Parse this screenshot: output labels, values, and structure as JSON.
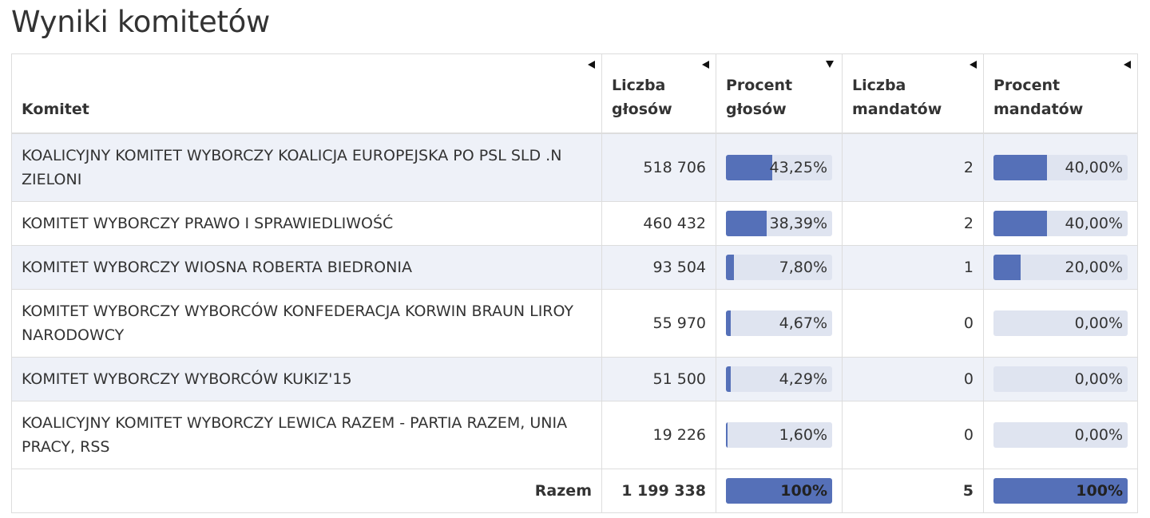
{
  "page": {
    "title": "Wyniki komitetów"
  },
  "table": {
    "headers": {
      "committee": "Komitet",
      "votes": "Liczba głosów",
      "votes_pct": "Procent głosów",
      "seats": "Liczba mandatów",
      "seats_pct": "Procent mandatów"
    },
    "rows": [
      {
        "name": "KOALICYJNY KOMITET WYBORCZY KOALICJA EUROPEJSKA PO PSL SLD .N ZIELONI",
        "votes": "518 706",
        "votes_pct": "43,25%",
        "votes_frac": 0.4325,
        "seats": "2",
        "seats_pct": "40,00%",
        "seats_frac": 0.4
      },
      {
        "name": "KOMITET WYBORCZY PRAWO I SPRAWIEDLIWOŚĆ",
        "votes": "460 432",
        "votes_pct": "38,39%",
        "votes_frac": 0.3839,
        "seats": "2",
        "seats_pct": "40,00%",
        "seats_frac": 0.4
      },
      {
        "name": "KOMITET WYBORCZY WIOSNA ROBERTA BIEDRONIA",
        "votes": "93 504",
        "votes_pct": "7,80%",
        "votes_frac": 0.078,
        "seats": "1",
        "seats_pct": "20,00%",
        "seats_frac": 0.2
      },
      {
        "name": "KOMITET WYBORCZY WYBORCÓW KONFEDERACJA KORWIN BRAUN LIROY NARODOWCY",
        "votes": "55 970",
        "votes_pct": "4,67%",
        "votes_frac": 0.0467,
        "seats": "0",
        "seats_pct": "0,00%",
        "seats_frac": 0.0
      },
      {
        "name": "KOMITET WYBORCZY WYBORCÓW KUKIZ'15",
        "votes": "51 500",
        "votes_pct": "4,29%",
        "votes_frac": 0.0429,
        "seats": "0",
        "seats_pct": "0,00%",
        "seats_frac": 0.0
      },
      {
        "name": "KOALICYJNY KOMITET WYBORCZY LEWICA RAZEM - PARTIA RAZEM, UNIA PRACY, RSS",
        "votes": "19 226",
        "votes_pct": "1,60%",
        "votes_frac": 0.016,
        "seats": "0",
        "seats_pct": "0,00%",
        "seats_frac": 0.0
      }
    ],
    "total": {
      "label": "Razem",
      "votes": "1 199 338",
      "votes_pct": "100%",
      "votes_frac": 1.0,
      "seats": "5",
      "seats_pct": "100%",
      "seats_frac": 1.0
    }
  },
  "colors": {
    "bar_fill": "#5570b8",
    "bar_track": "#dfe4f0",
    "stripe": "#eef1f8"
  }
}
